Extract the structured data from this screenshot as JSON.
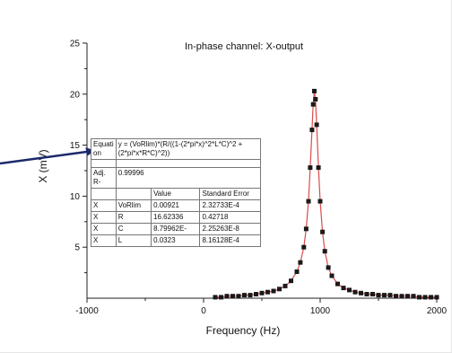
{
  "chart_data": {
    "type": "scatter",
    "title": "In-phase channel: X-output",
    "xlabel": "Frequency (Hz)",
    "ylabel": "X (mV)",
    "xlim": [
      -1000,
      2000
    ],
    "ylim": [
      0,
      25
    ],
    "xticks": [
      -1000,
      0,
      1000,
      2000
    ],
    "xtick_labels": [
      "-1000",
      "0",
      "1000",
      "2000"
    ],
    "yticks": [
      5,
      10,
      15,
      20,
      25
    ],
    "ytick_labels": [
      "5",
      "10",
      "15",
      "20",
      "25"
    ],
    "grid": false,
    "marker_color": "#1a1a1a",
    "fit_color": "#d94b4b",
    "arrow_color": "#1c2a6b",
    "series": [
      {
        "x": [
          100,
          150,
          200,
          250,
          300,
          350,
          400,
          450,
          500,
          550,
          600,
          650,
          700,
          750,
          800,
          830,
          860,
          880,
          900,
          915,
          930,
          940,
          950,
          960,
          970,
          985,
          1000,
          1020,
          1040,
          1070,
          1100,
          1150,
          1200,
          1250,
          1300,
          1350,
          1400,
          1450,
          1500,
          1550,
          1600,
          1650,
          1700,
          1750,
          1800,
          1850,
          1900,
          1950,
          2000
        ],
        "y": [
          0.1,
          0.1,
          0.2,
          0.2,
          0.2,
          0.3,
          0.3,
          0.4,
          0.5,
          0.6,
          0.7,
          0.9,
          1.2,
          1.7,
          2.6,
          3.5,
          5.0,
          6.8,
          9.5,
          12.8,
          16.5,
          19.0,
          20.3,
          19.5,
          17.0,
          12.8,
          9.5,
          6.5,
          4.6,
          3.0,
          2.2,
          1.4,
          1.0,
          0.8,
          0.6,
          0.5,
          0.4,
          0.4,
          0.3,
          0.3,
          0.3,
          0.2,
          0.2,
          0.2,
          0.2,
          0.1,
          0.1,
          0.1,
          0.1
        ]
      }
    ]
  },
  "fit_table": {
    "equation_label": "Equati on",
    "equation": "y = (VoRlim)*(R/((1-(2*pi*x)^2*L*C)^2 +(2*pi*x*R*C)^2))",
    "adj_r_label": "Adj. R-",
    "adj_r_value": "0.99996",
    "col_value": "Value",
    "col_error": "Standard Error",
    "rows": [
      {
        "v": "X",
        "p": "VoRlim",
        "val": "0.00921",
        "err": "2.32733E-4"
      },
      {
        "v": "X",
        "p": "R",
        "val": "16.62336",
        "err": "0.42718"
      },
      {
        "v": "X",
        "p": "C",
        "val": "8.79962E-",
        "err": "2.25263E-8"
      },
      {
        "v": "X",
        "p": "L",
        "val": "0.0323",
        "err": "8.16128E-4"
      }
    ]
  }
}
